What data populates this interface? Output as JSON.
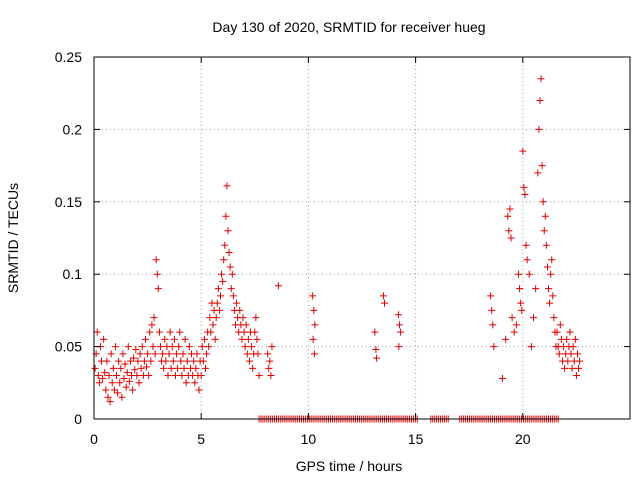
{
  "chart_data": {
    "type": "scatter",
    "title": "Day 130 of 2020, SRMTID for receiver hueg",
    "xlabel": "GPS time / hours",
    "ylabel": "SRMTID / TECUs",
    "xlim": [
      0,
      25
    ],
    "ylim": [
      0,
      0.25
    ],
    "xticks": [
      0,
      5,
      10,
      15,
      20
    ],
    "xtick_labels": [
      "0",
      "5",
      "10",
      "15",
      "20"
    ],
    "yticks": [
      0,
      0.05,
      0.1,
      0.15,
      0.2,
      0.25
    ],
    "ytick_labels": [
      "0",
      "0.05",
      "0.1",
      "0.15",
      "0.2",
      "0.25"
    ],
    "grid": true,
    "marker": "+",
    "color": "#e00000",
    "series": [
      {
        "name": "SRMTID",
        "points": [
          [
            0.05,
            0.035
          ],
          [
            0.1,
            0.045
          ],
          [
            0.15,
            0.06
          ],
          [
            0.2,
            0.03
          ],
          [
            0.25,
            0.025
          ],
          [
            0.3,
            0.05
          ],
          [
            0.35,
            0.04
          ],
          [
            0.4,
            0.028
          ],
          [
            0.45,
            0.055
          ],
          [
            0.5,
            0.032
          ],
          [
            0.55,
            0.02
          ],
          [
            0.6,
            0.04
          ],
          [
            0.65,
            0.015
          ],
          [
            0.7,
            0.03
          ],
          [
            0.75,
            0.012
          ],
          [
            0.8,
            0.045
          ],
          [
            0.85,
            0.025
          ],
          [
            0.9,
            0.035
          ],
          [
            0.95,
            0.02
          ],
          [
            1.0,
            0.05
          ],
          [
            1.05,
            0.03
          ],
          [
            1.1,
            0.018
          ],
          [
            1.15,
            0.04
          ],
          [
            1.2,
            0.025
          ],
          [
            1.25,
            0.035
          ],
          [
            1.3,
            0.015
          ],
          [
            1.35,
            0.045
          ],
          [
            1.4,
            0.028
          ],
          [
            1.45,
            0.038
          ],
          [
            1.5,
            0.022
          ],
          [
            1.55,
            0.032
          ],
          [
            1.6,
            0.05
          ],
          [
            1.65,
            0.026
          ],
          [
            1.7,
            0.04
          ],
          [
            1.75,
            0.03
          ],
          [
            1.8,
            0.02
          ],
          [
            1.85,
            0.042
          ],
          [
            1.9,
            0.034
          ],
          [
            1.95,
            0.048
          ],
          [
            2.0,
            0.03
          ],
          [
            2.05,
            0.04
          ],
          [
            2.1,
            0.025
          ],
          [
            2.15,
            0.045
          ],
          [
            2.2,
            0.035
          ],
          [
            2.25,
            0.05
          ],
          [
            2.3,
            0.03
          ],
          [
            2.35,
            0.04
          ],
          [
            2.4,
            0.055
          ],
          [
            2.45,
            0.036
          ],
          [
            2.5,
            0.045
          ],
          [
            2.55,
            0.03
          ],
          [
            2.6,
            0.06
          ],
          [
            2.65,
            0.04
          ],
          [
            2.7,
            0.065
          ],
          [
            2.75,
            0.05
          ],
          [
            2.8,
            0.07
          ],
          [
            2.85,
            0.045
          ],
          [
            2.9,
            0.11
          ],
          [
            2.95,
            0.1
          ],
          [
            3.0,
            0.09
          ],
          [
            3.05,
            0.06
          ],
          [
            3.1,
            0.05
          ],
          [
            3.15,
            0.04
          ],
          [
            3.2,
            0.045
          ],
          [
            3.25,
            0.035
          ],
          [
            3.3,
            0.055
          ],
          [
            3.35,
            0.04
          ],
          [
            3.4,
            0.05
          ],
          [
            3.45,
            0.03
          ],
          [
            3.5,
            0.045
          ],
          [
            3.55,
            0.06
          ],
          [
            3.6,
            0.035
          ],
          [
            3.65,
            0.05
          ],
          [
            3.7,
            0.04
          ],
          [
            3.75,
            0.055
          ],
          [
            3.8,
            0.03
          ],
          [
            3.85,
            0.045
          ],
          [
            3.9,
            0.035
          ],
          [
            3.95,
            0.05
          ],
          [
            4.0,
            0.06
          ],
          [
            4.05,
            0.04
          ],
          [
            4.1,
            0.03
          ],
          [
            4.15,
            0.045
          ],
          [
            4.2,
            0.035
          ],
          [
            4.25,
            0.055
          ],
          [
            4.3,
            0.025
          ],
          [
            4.35,
            0.04
          ],
          [
            4.4,
            0.03
          ],
          [
            4.45,
            0.05
          ],
          [
            4.5,
            0.035
          ],
          [
            4.55,
            0.045
          ],
          [
            4.6,
            0.03
          ],
          [
            4.65,
            0.04
          ],
          [
            4.7,
            0.025
          ],
          [
            4.75,
            0.035
          ],
          [
            4.8,
            0.045
          ],
          [
            4.85,
            0.03
          ],
          [
            4.9,
            0.02
          ],
          [
            4.95,
            0.04
          ],
          [
            5.0,
            0.03
          ],
          [
            5.05,
            0.05
          ],
          [
            5.1,
            0.04
          ],
          [
            5.15,
            0.055
          ],
          [
            5.2,
            0.035
          ],
          [
            5.25,
            0.045
          ],
          [
            5.3,
            0.06
          ],
          [
            5.35,
            0.05
          ],
          [
            5.4,
            0.07
          ],
          [
            5.45,
            0.06
          ],
          [
            5.5,
            0.08
          ],
          [
            5.55,
            0.065
          ],
          [
            5.6,
            0.075
          ],
          [
            5.65,
            0.055
          ],
          [
            5.7,
            0.07
          ],
          [
            5.75,
            0.08
          ],
          [
            5.8,
            0.09
          ],
          [
            5.85,
            0.075
          ],
          [
            5.9,
            0.085
          ],
          [
            5.95,
            0.1
          ],
          [
            6.0,
            0.095
          ],
          [
            6.05,
            0.11
          ],
          [
            6.1,
            0.12
          ],
          [
            6.15,
            0.14
          ],
          [
            6.2,
            0.161
          ],
          [
            6.25,
            0.13
          ],
          [
            6.3,
            0.115
          ],
          [
            6.35,
            0.105
          ],
          [
            6.4,
            0.09
          ],
          [
            6.45,
            0.1
          ],
          [
            6.5,
            0.085
          ],
          [
            6.55,
            0.075
          ],
          [
            6.6,
            0.065
          ],
          [
            6.65,
            0.08
          ],
          [
            6.7,
            0.07
          ],
          [
            6.75,
            0.06
          ],
          [
            6.8,
            0.075
          ],
          [
            6.85,
            0.065
          ],
          [
            6.9,
            0.055
          ],
          [
            6.95,
            0.07
          ],
          [
            7.0,
            0.06
          ],
          [
            7.05,
            0.05
          ],
          [
            7.1,
            0.065
          ],
          [
            7.15,
            0.045
          ],
          [
            7.2,
            0.055
          ],
          [
            7.25,
            0.04
          ],
          [
            7.3,
            0.06
          ],
          [
            7.35,
            0.05
          ],
          [
            7.4,
            0.035
          ],
          [
            7.45,
            0.045
          ],
          [
            7.5,
            0.06
          ],
          [
            7.55,
            0.07
          ],
          [
            7.6,
            0.055
          ],
          [
            7.65,
            0.045
          ],
          [
            7.7,
            0.03
          ],
          [
            8.1,
            0.045
          ],
          [
            8.15,
            0.035
          ],
          [
            8.2,
            0.04
          ],
          [
            8.25,
            0.03
          ],
          [
            8.3,
            0.05
          ],
          [
            8.6,
            0.092
          ],
          [
            10.2,
            0.085
          ],
          [
            10.25,
            0.075
          ],
          [
            10.3,
            0.065
          ],
          [
            10.22,
            0.055
          ],
          [
            10.28,
            0.045
          ],
          [
            13.1,
            0.06
          ],
          [
            13.15,
            0.048
          ],
          [
            13.18,
            0.042
          ],
          [
            13.5,
            0.085
          ],
          [
            13.55,
            0.08
          ],
          [
            14.2,
            0.072
          ],
          [
            14.25,
            0.065
          ],
          [
            14.3,
            0.06
          ],
          [
            14.22,
            0.05
          ],
          [
            18.5,
            0.085
          ],
          [
            18.55,
            0.075
          ],
          [
            18.6,
            0.065
          ],
          [
            18.65,
            0.05
          ],
          [
            19.05,
            0.028
          ],
          [
            19.2,
            0.055
          ],
          [
            19.3,
            0.14
          ],
          [
            19.35,
            0.13
          ],
          [
            19.4,
            0.145
          ],
          [
            19.45,
            0.125
          ],
          [
            19.5,
            0.07
          ],
          [
            19.6,
            0.06
          ],
          [
            19.7,
            0.065
          ],
          [
            19.8,
            0.1
          ],
          [
            19.85,
            0.09
          ],
          [
            19.9,
            0.08
          ],
          [
            19.95,
            0.075
          ],
          [
            20.0,
            0.185
          ],
          [
            20.05,
            0.16
          ],
          [
            20.1,
            0.155
          ],
          [
            20.15,
            0.12
          ],
          [
            20.2,
            0.11
          ],
          [
            20.3,
            0.1
          ],
          [
            20.4,
            0.05
          ],
          [
            20.5,
            0.07
          ],
          [
            20.6,
            0.09
          ],
          [
            20.7,
            0.17
          ],
          [
            20.75,
            0.2
          ],
          [
            20.8,
            0.22
          ],
          [
            20.85,
            0.235
          ],
          [
            20.9,
            0.175
          ],
          [
            20.95,
            0.15
          ],
          [
            21.0,
            0.13
          ],
          [
            21.05,
            0.14
          ],
          [
            21.1,
            0.12
          ],
          [
            21.15,
            0.105
          ],
          [
            21.2,
            0.09
          ],
          [
            21.25,
            0.08
          ],
          [
            21.3,
            0.1
          ],
          [
            21.35,
            0.11
          ],
          [
            21.4,
            0.085
          ],
          [
            21.45,
            0.07
          ],
          [
            21.5,
            0.06
          ],
          [
            21.55,
            0.05
          ],
          [
            21.6,
            0.06
          ],
          [
            21.65,
            0.05
          ],
          [
            21.7,
            0.045
          ],
          [
            21.75,
            0.065
          ],
          [
            21.8,
            0.055
          ],
          [
            21.85,
            0.04
          ],
          [
            21.9,
            0.05
          ],
          [
            21.95,
            0.035
          ],
          [
            22.0,
            0.045
          ],
          [
            22.05,
            0.055
          ],
          [
            22.1,
            0.04
          ],
          [
            22.15,
            0.05
          ],
          [
            22.2,
            0.06
          ],
          [
            22.25,
            0.045
          ],
          [
            22.3,
            0.035
          ],
          [
            22.35,
            0.05
          ],
          [
            22.4,
            0.04
          ],
          [
            22.45,
            0.055
          ],
          [
            22.5,
            0.03
          ],
          [
            22.55,
            0.045
          ],
          [
            22.6,
            0.035
          ],
          [
            22.65,
            0.04
          ]
        ]
      },
      {
        "name": "zero-baseline",
        "x_from": 7.7,
        "x_to": 21.7,
        "gaps": [
          [
            15.1,
            15.7
          ],
          [
            16.6,
            17.0
          ]
        ],
        "y": 0
      }
    ]
  }
}
